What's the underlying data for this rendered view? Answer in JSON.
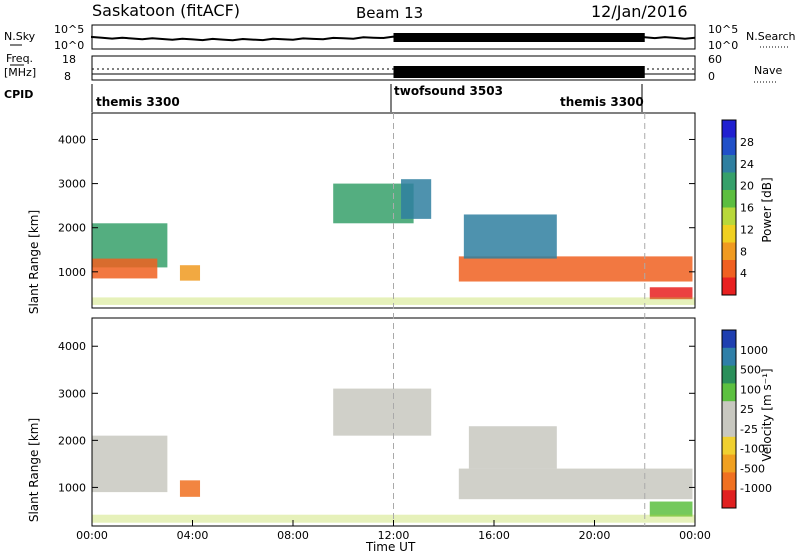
{
  "header": {
    "title": "Saskatoon (fitACF)",
    "beam": "Beam 13",
    "date": "12/Jan/2016"
  },
  "top_panel": {
    "left_label": "N.Sky",
    "left_ticks": [
      "10^5",
      "10^0"
    ],
    "right_ticks": [
      "10^5",
      "10^0"
    ],
    "right_label": "N.Search"
  },
  "freq_panel": {
    "left_label_1": "Freq.",
    "left_label_2": "[MHz]",
    "left_ticks": [
      "18",
      "8"
    ],
    "right_ticks": [
      "60",
      "0"
    ],
    "right_label": "Nave"
  },
  "cpid": {
    "label": "CPID",
    "segments": [
      "themis 3300",
      "twofsound 3503",
      "themis 3300"
    ]
  },
  "axes": {
    "ylabel": "Slant Range [km]",
    "yticks": [
      "4000",
      "3000",
      "2000",
      "1000"
    ],
    "xticks": [
      "00:00",
      "04:00",
      "08:00",
      "12:00",
      "16:00",
      "20:00",
      "00:00"
    ],
    "xlabel": "Time UT"
  },
  "colorbars": {
    "power": {
      "label": "Power [dB]",
      "ticks": [
        "28",
        "24",
        "20",
        "16",
        "12",
        "8",
        "4"
      ],
      "colors": [
        "#2020d0",
        "#2050c8",
        "#2f7fa0",
        "#36a06a",
        "#5cbe40",
        "#b8d83a",
        "#f0d020",
        "#f09a20",
        "#f06020",
        "#e82020"
      ]
    },
    "velocity": {
      "label": "Velocity [m s⁻¹]",
      "ticks": [
        "1000",
        "500",
        "100",
        "25",
        "-25",
        "-100",
        "-500",
        "-1000"
      ],
      "colors": [
        "#1f3fb0",
        "#2f7fa8",
        "#2a8f5a",
        "#5cc040",
        "#c8c8c0",
        "#c8c8c0",
        "#f0d030",
        "#f0a020",
        "#f07020",
        "#e02020"
      ]
    }
  },
  "chart_data": {
    "type": "heatmap",
    "x_range_hours": [
      0,
      24
    ],
    "y_range_km": [
      180,
      4600
    ],
    "dashed_x_hours": [
      12,
      22
    ],
    "power_regions": [
      {
        "t0": 0.0,
        "t1": 3.0,
        "r0": 1100,
        "r1": 2100,
        "color": "#36a06a"
      },
      {
        "t0": 0.0,
        "t1": 2.6,
        "r0": 850,
        "r1": 1300,
        "color": "#f06020"
      },
      {
        "t0": 3.5,
        "t1": 4.3,
        "r0": 800,
        "r1": 1150,
        "color": "#f09a20"
      },
      {
        "t0": 9.6,
        "t1": 12.8,
        "r0": 2100,
        "r1": 3000,
        "color": "#36a06a"
      },
      {
        "t0": 12.3,
        "t1": 13.5,
        "r0": 2200,
        "r1": 3100,
        "color": "#2f7fa0"
      },
      {
        "t0": 14.6,
        "t1": 23.9,
        "r0": 780,
        "r1": 1350,
        "color": "#f06020"
      },
      {
        "t0": 14.8,
        "t1": 18.5,
        "r0": 1300,
        "r1": 2300,
        "color": "#2f7fa0"
      },
      {
        "t0": 22.2,
        "t1": 23.9,
        "r0": 380,
        "r1": 650,
        "color": "#e82020"
      }
    ],
    "velocity_regions": [
      {
        "t0": 0.0,
        "t1": 3.0,
        "r0": 900,
        "r1": 2100,
        "color": "#c8c8c0"
      },
      {
        "t0": 3.5,
        "t1": 4.3,
        "r0": 800,
        "r1": 1150,
        "color": "#f07020"
      },
      {
        "t0": 9.6,
        "t1": 13.5,
        "r0": 2100,
        "r1": 3100,
        "color": "#c8c8c0"
      },
      {
        "t0": 14.6,
        "t1": 23.9,
        "r0": 750,
        "r1": 1400,
        "color": "#c8c8c0"
      },
      {
        "t0": 15.0,
        "t1": 18.5,
        "r0": 1400,
        "r1": 2300,
        "color": "#c8c8c0"
      },
      {
        "t0": 22.2,
        "t1": 23.9,
        "r0": 380,
        "r1": 700,
        "color": "#5cc040"
      }
    ]
  }
}
